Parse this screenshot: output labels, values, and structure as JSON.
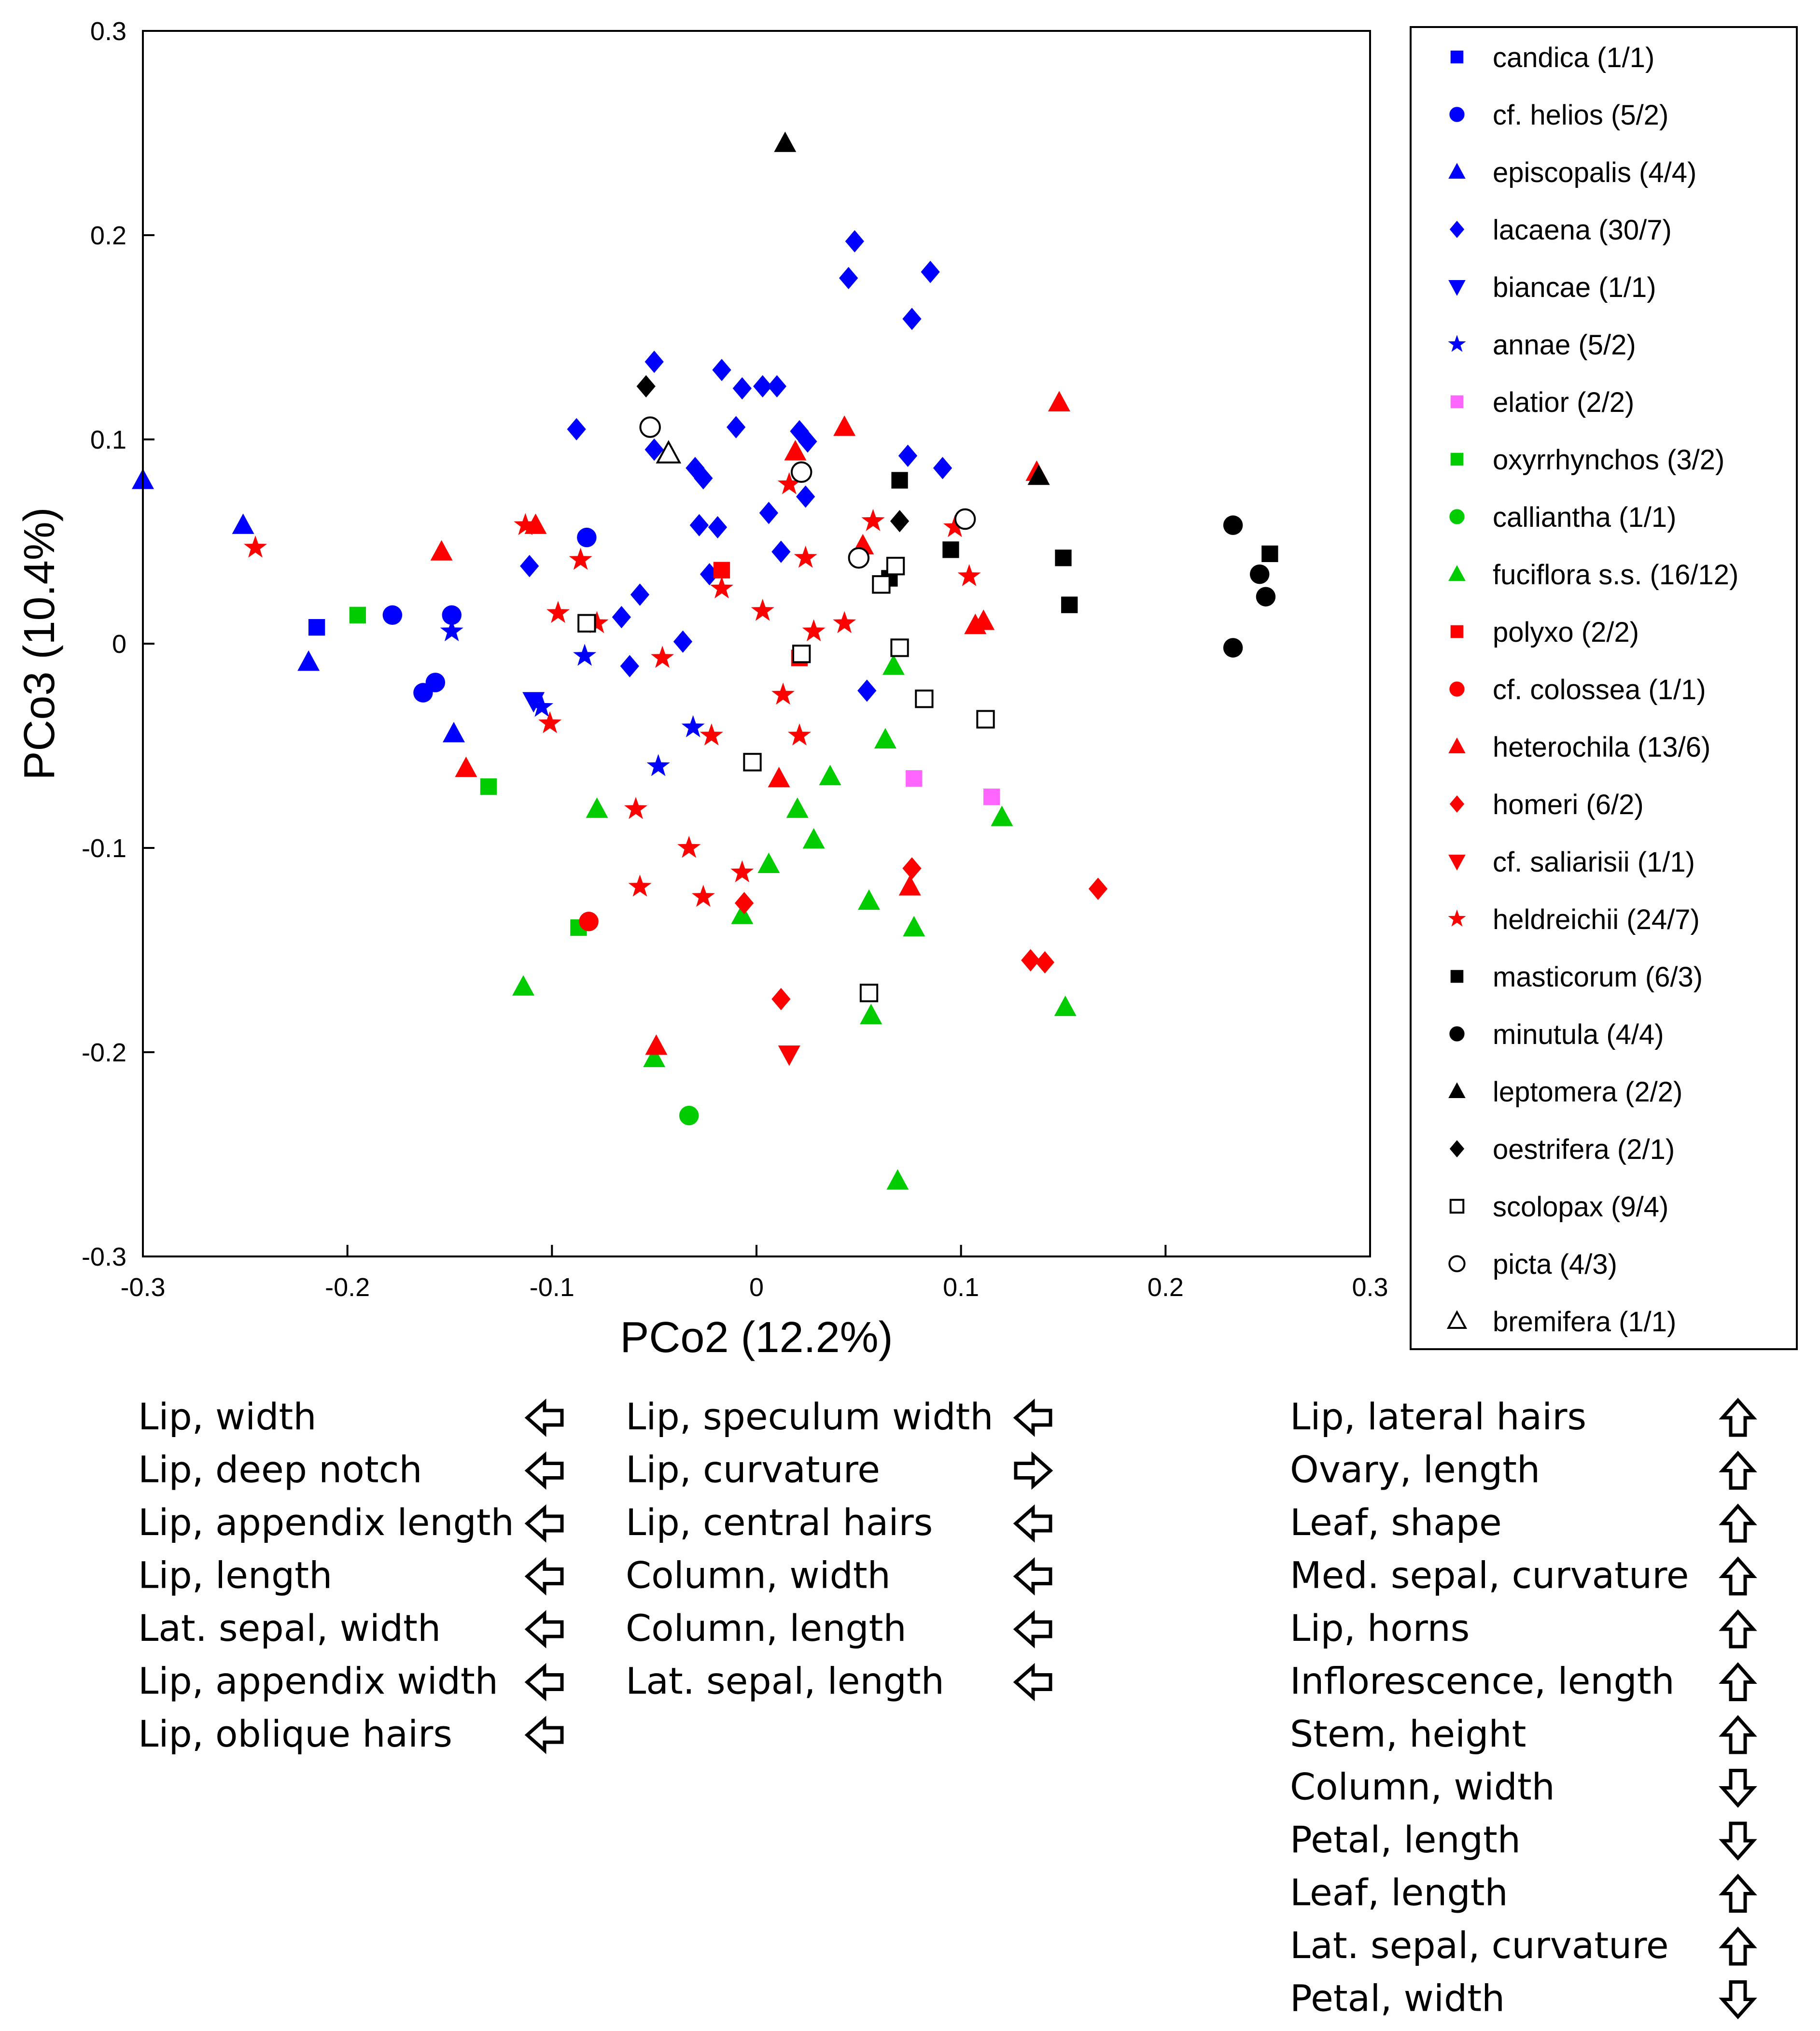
{
  "chart_data": {
    "type": "scatter",
    "title": "",
    "xlabel": "PCo2 (12.2%)",
    "ylabel": "PCo3 (10.4%)",
    "xlim": [
      -0.3,
      0.3
    ],
    "ylim": [
      -0.3,
      0.3
    ],
    "xticks": [
      -0.3,
      -0.2,
      -0.1,
      0,
      0.1,
      0.2,
      0.3
    ],
    "yticks": [
      -0.3,
      -0.2,
      -0.1,
      0,
      0.1,
      0.2,
      0.3
    ],
    "xtick_labels": [
      "-0.3",
      "-0.2",
      "-0.1",
      "0",
      "0.1",
      "0.2",
      "0.3"
    ],
    "ytick_labels": [
      "-0.3",
      "-0.2",
      "-0.1",
      "0",
      "0.1",
      "0.2",
      "0.3"
    ],
    "grid": false,
    "legend_position": "right",
    "series": [
      {
        "name": "candica (1/1)",
        "color": "#0000ff",
        "marker": "square",
        "filled": true,
        "points": [
          [
            -0.215,
            0.008
          ]
        ]
      },
      {
        "name": "cf. helios (5/2)",
        "color": "#0000ff",
        "marker": "circle",
        "filled": true,
        "points": [
          [
            -0.178,
            0.014
          ],
          [
            -0.149,
            0.014
          ],
          [
            -0.157,
            -0.019
          ],
          [
            -0.163,
            -0.024
          ],
          [
            -0.083,
            0.052
          ]
        ]
      },
      {
        "name": "episcopalis (4/4)",
        "color": "#0000ff",
        "marker": "triangle-up",
        "filled": true,
        "points": [
          [
            -0.3,
            0.08
          ],
          [
            -0.251,
            0.058
          ],
          [
            -0.219,
            -0.009
          ],
          [
            -0.148,
            -0.044
          ]
        ]
      },
      {
        "name": "lacaena (30/7)",
        "color": "#0000ff",
        "marker": "diamond",
        "filled": true,
        "points": [
          [
            0.048,
            0.197
          ],
          [
            0.045,
            0.179
          ],
          [
            0.085,
            0.182
          ],
          [
            0.076,
            0.159
          ],
          [
            -0.05,
            0.138
          ],
          [
            -0.017,
            0.134
          ],
          [
            -0.007,
            0.125
          ],
          [
            0.003,
            0.126
          ],
          [
            0.01,
            0.126
          ],
          [
            -0.088,
            0.105
          ],
          [
            -0.01,
            0.106
          ],
          [
            0.021,
            0.104
          ],
          [
            0.025,
            0.099
          ],
          [
            -0.05,
            0.095
          ],
          [
            -0.03,
            0.086
          ],
          [
            -0.026,
            0.081
          ],
          [
            0.074,
            0.092
          ],
          [
            0.091,
            0.086
          ],
          [
            -0.028,
            0.058
          ],
          [
            -0.019,
            0.057
          ],
          [
            0.006,
            0.064
          ],
          [
            0.024,
            0.072
          ],
          [
            -0.111,
            0.038
          ],
          [
            -0.057,
            0.024
          ],
          [
            -0.023,
            0.034
          ],
          [
            0.012,
            0.045
          ],
          [
            -0.066,
            0.013
          ],
          [
            -0.036,
            0.001
          ],
          [
            -0.062,
            -0.011
          ],
          [
            0.054,
            -0.023
          ]
        ]
      },
      {
        "name": "biancae (1/1)",
        "color": "#0000ff",
        "marker": "triangle-down",
        "filled": true,
        "points": [
          [
            -0.109,
            -0.028
          ]
        ]
      },
      {
        "name": "annae (5/2)",
        "color": "#0000ff",
        "marker": "star",
        "filled": true,
        "points": [
          [
            -0.149,
            0.006
          ],
          [
            -0.084,
            -0.006
          ],
          [
            -0.105,
            -0.031
          ],
          [
            -0.031,
            -0.041
          ],
          [
            -0.048,
            -0.06
          ]
        ]
      },
      {
        "name": "elatior (2/2)",
        "color": "#ff66ff",
        "marker": "square",
        "filled": true,
        "points": [
          [
            0.077,
            -0.066
          ],
          [
            0.115,
            -0.075
          ]
        ]
      },
      {
        "name": "oxyrrhynchos (3/2)",
        "color": "#00cc00",
        "marker": "square",
        "filled": true,
        "points": [
          [
            -0.195,
            0.014
          ],
          [
            -0.131,
            -0.07
          ],
          [
            -0.087,
            -0.139
          ]
        ]
      },
      {
        "name": "callianthа (1/1)",
        "color": "#00cc00",
        "marker": "circle",
        "filled": true,
        "points": [
          [
            -0.033,
            -0.231
          ]
        ]
      },
      {
        "name": "fuciflora s.s. (16/12)",
        "color": "#00cc00",
        "marker": "triangle-up",
        "filled": true,
        "points": [
          [
            -0.078,
            -0.081
          ],
          [
            0.02,
            -0.081
          ],
          [
            0.036,
            -0.065
          ],
          [
            0.063,
            -0.047
          ],
          [
            0.067,
            -0.011
          ],
          [
            0.12,
            -0.085
          ],
          [
            0.028,
            -0.096
          ],
          [
            0.006,
            -0.108
          ],
          [
            -0.007,
            -0.133
          ],
          [
            0.055,
            -0.126
          ],
          [
            0.077,
            -0.139
          ],
          [
            -0.114,
            -0.168
          ],
          [
            0.056,
            -0.182
          ],
          [
            0.151,
            -0.178
          ],
          [
            -0.05,
            -0.203
          ],
          [
            0.069,
            -0.263
          ]
        ]
      },
      {
        "name": "polyxo (2/2)",
        "color": "#ff0000",
        "marker": "square",
        "filled": true,
        "points": [
          [
            -0.017,
            0.036
          ],
          [
            0.021,
            -0.007
          ]
        ]
      },
      {
        "name": "cf. colossea (1/1)",
        "color": "#ff0000",
        "marker": "circle",
        "filled": true,
        "points": [
          [
            -0.082,
            -0.136
          ]
        ]
      },
      {
        "name": "heterochila (13/6)",
        "color": "#ff0000",
        "marker": "triangle-up",
        "filled": true,
        "points": [
          [
            0.148,
            0.118
          ],
          [
            0.043,
            0.106
          ],
          [
            0.019,
            0.094
          ],
          [
            0.137,
            0.084
          ],
          [
            -0.154,
            0.045
          ],
          [
            -0.108,
            0.058
          ],
          [
            0.052,
            0.048
          ],
          [
            0.107,
            0.009
          ],
          [
            0.111,
            0.011
          ],
          [
            0.011,
            -0.066
          ],
          [
            -0.142,
            -0.061
          ],
          [
            0.075,
            -0.119
          ],
          [
            -0.049,
            -0.197
          ]
        ]
      },
      {
        "name": "homeri (6/2)",
        "color": "#ff0000",
        "marker": "diamond",
        "filled": true,
        "points": [
          [
            0.076,
            -0.11
          ],
          [
            0.167,
            -0.12
          ],
          [
            -0.006,
            -0.127
          ],
          [
            0.134,
            -0.155
          ],
          [
            0.141,
            -0.156
          ],
          [
            0.012,
            -0.174
          ]
        ]
      },
      {
        "name": "cf. saliarisii (1/1)",
        "color": "#ff0000",
        "marker": "triangle-down",
        "filled": true,
        "points": [
          [
            0.016,
            -0.201
          ]
        ]
      },
      {
        "name": "heldreichii (24/7)",
        "color": "#ff0000",
        "marker": "star",
        "filled": true,
        "points": [
          [
            -0.245,
            0.047
          ],
          [
            -0.113,
            0.058
          ],
          [
            -0.086,
            0.041
          ],
          [
            -0.097,
            0.015
          ],
          [
            -0.078,
            0.01
          ],
          [
            -0.046,
            -0.007
          ],
          [
            -0.101,
            -0.039
          ],
          [
            -0.017,
            0.027
          ],
          [
            0.003,
            0.016
          ],
          [
            0.016,
            0.078
          ],
          [
            0.057,
            0.06
          ],
          [
            0.097,
            0.057
          ],
          [
            0.104,
            0.033
          ],
          [
            0.024,
            0.042
          ],
          [
            0.043,
            0.01
          ],
          [
            0.028,
            0.006
          ],
          [
            0.013,
            -0.025
          ],
          [
            0.021,
            -0.045
          ],
          [
            -0.022,
            -0.045
          ],
          [
            -0.059,
            -0.081
          ],
          [
            -0.033,
            -0.1
          ],
          [
            -0.057,
            -0.119
          ],
          [
            -0.007,
            -0.112
          ],
          [
            -0.026,
            -0.124
          ]
        ]
      },
      {
        "name": "masticorum (6/3)",
        "color": "#000000",
        "marker": "square",
        "filled": true,
        "points": [
          [
            0.07,
            0.08
          ],
          [
            0.095,
            0.046
          ],
          [
            0.15,
            0.042
          ],
          [
            0.153,
            0.019
          ],
          [
            0.251,
            0.044
          ],
          [
            0.065,
            0.032
          ]
        ]
      },
      {
        "name": "minutula (4/4)",
        "color": "#000000",
        "marker": "circle",
        "filled": true,
        "points": [
          [
            0.233,
            0.058
          ],
          [
            0.246,
            0.034
          ],
          [
            0.249,
            0.023
          ],
          [
            0.233,
            -0.002
          ]
        ]
      },
      {
        "name": "leptomera (2/2)",
        "color": "#000000",
        "marker": "triangle-up",
        "filled": true,
        "points": [
          [
            0.014,
            0.245
          ],
          [
            0.138,
            0.082
          ]
        ]
      },
      {
        "name": "oestrifera (2/1)",
        "color": "#000000",
        "marker": "diamond",
        "filled": true,
        "points": [
          [
            -0.054,
            0.126
          ],
          [
            0.07,
            0.06
          ]
        ]
      },
      {
        "name": "scolopax (9/4)",
        "color": "#000000",
        "marker": "square",
        "filled": false,
        "points": [
          [
            -0.083,
            0.01
          ],
          [
            0.022,
            -0.005
          ],
          [
            0.068,
            0.038
          ],
          [
            0.061,
            0.029
          ],
          [
            0.07,
            -0.002
          ],
          [
            0.082,
            -0.027
          ],
          [
            0.112,
            -0.037
          ],
          [
            -0.002,
            -0.058
          ],
          [
            0.055,
            -0.171
          ]
        ]
      },
      {
        "name": "picta (4/3)",
        "color": "#000000",
        "marker": "circle",
        "filled": false,
        "points": [
          [
            -0.052,
            0.106
          ],
          [
            0.022,
            0.084
          ],
          [
            0.102,
            0.061
          ],
          [
            0.05,
            0.042
          ]
        ]
      },
      {
        "name": "bremifera (1/1)",
        "color": "#000000",
        "marker": "triangle-up",
        "filled": false,
        "points": [
          [
            -0.043,
            0.093
          ]
        ]
      }
    ]
  },
  "annotations": {
    "col1": [
      {
        "label": "Lip, width",
        "arrow": "left"
      },
      {
        "label": "Lip, deep notch",
        "arrow": "left"
      },
      {
        "label": "Lip, appendix length",
        "arrow": "left"
      },
      {
        "label": "Lip, length",
        "arrow": "left"
      },
      {
        "label": "Lat. sepal, width",
        "arrow": "left"
      },
      {
        "label": "Lip, appendix width",
        "arrow": "left"
      },
      {
        "label": "Lip, oblique hairs",
        "arrow": "left"
      }
    ],
    "col2": [
      {
        "label": "Lip, speculum width",
        "arrow": "left"
      },
      {
        "label": "Lip, curvature",
        "arrow": "right"
      },
      {
        "label": "Lip, central hairs",
        "arrow": "left"
      },
      {
        "label": "Column, width",
        "arrow": "left"
      },
      {
        "label": "Column, length",
        "arrow": "left"
      },
      {
        "label": "Lat. sepal, length",
        "arrow": "left"
      }
    ],
    "col3": [
      {
        "label": "Lip, lateral hairs",
        "arrow": "up"
      },
      {
        "label": "Ovary, length",
        "arrow": "up"
      },
      {
        "label": "Leaf, shape",
        "arrow": "up"
      },
      {
        "label": "Med. sepal, curvature",
        "arrow": "up"
      },
      {
        "label": "Lip, horns",
        "arrow": "up"
      },
      {
        "label": "Inflorescence, length",
        "arrow": "up"
      },
      {
        "label": "Stem, height",
        "arrow": "up"
      },
      {
        "label": "Column, width",
        "arrow": "down"
      },
      {
        "label": "Petal, length",
        "arrow": "down"
      },
      {
        "label": "Leaf, length",
        "arrow": "up"
      },
      {
        "label": "Lat. sepal, curvature",
        "arrow": "up"
      },
      {
        "label": "Petal, width",
        "arrow": "down"
      }
    ]
  }
}
